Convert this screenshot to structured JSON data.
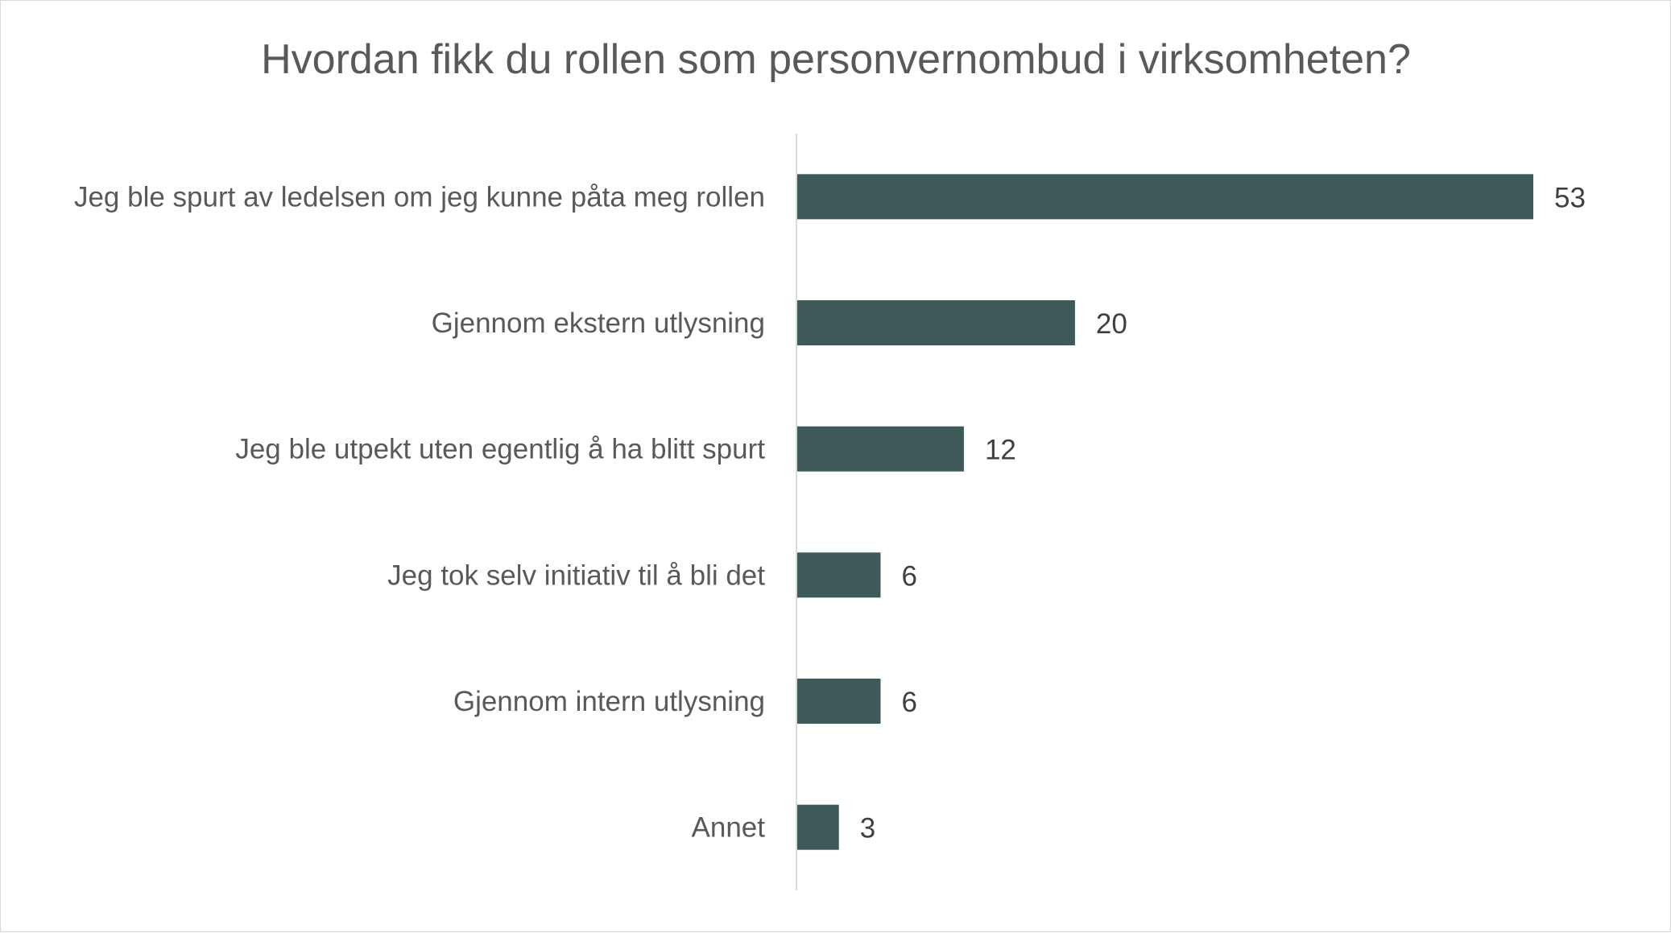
{
  "chart_data": {
    "type": "bar",
    "orientation": "horizontal",
    "title": "Hvordan fikk du rollen som personvernombud i virksomheten?",
    "categories": [
      "Jeg ble spurt av ledelsen om jeg kunne påta meg rollen",
      "Gjennom ekstern utlysning",
      "Jeg ble utpekt uten egentlig å ha blitt spurt",
      "Jeg tok selv initiativ til å bli det",
      "Gjennom intern utlysning",
      "Annet"
    ],
    "values": [
      53,
      20,
      12,
      6,
      6,
      3
    ],
    "data_labels": [
      "53",
      "20",
      "12",
      "6",
      "6",
      "3"
    ],
    "xlabel": "",
    "ylabel": "",
    "grid": false,
    "legend": "none",
    "colors": {
      "bar": "#3d5a58",
      "axis": "#d9d9d9",
      "title": "#595959",
      "label": "#595959",
      "value": "#404040"
    }
  }
}
